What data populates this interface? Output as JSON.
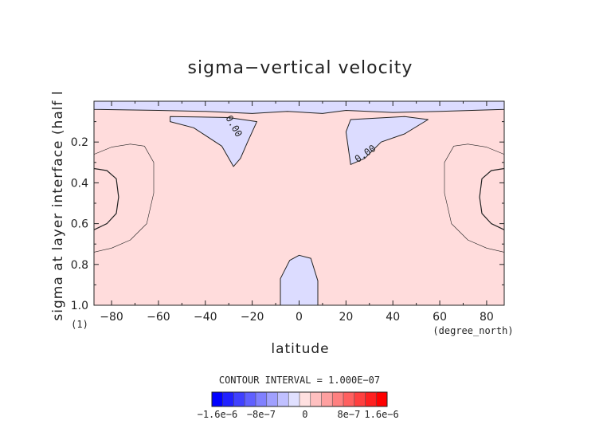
{
  "chart_data": {
    "type": "contour",
    "title": "sigma−vertical velocity",
    "xlabel": "latitude",
    "xunit": "(degree_north)",
    "ylabel": "sigma at layer interface (half l",
    "yunit": "(1)",
    "xlim": [
      -87.5,
      87.5
    ],
    "ylim": [
      1.0,
      0.0
    ],
    "x_ticks": [
      {
        "value": -80,
        "label": "−80"
      },
      {
        "value": -60,
        "label": "−60"
      },
      {
        "value": -40,
        "label": "−40"
      },
      {
        "value": -20,
        "label": "−20"
      },
      {
        "value": 0,
        "label": "0"
      },
      {
        "value": 20,
        "label": "20"
      },
      {
        "value": 40,
        "label": "40"
      },
      {
        "value": 60,
        "label": "60"
      },
      {
        "value": 80,
        "label": "80"
      }
    ],
    "y_ticks": [
      {
        "value": 0.2,
        "label": "0.2"
      },
      {
        "value": 0.4,
        "label": "0.4"
      },
      {
        "value": 0.6,
        "label": "0.6"
      },
      {
        "value": 0.8,
        "label": "0.8"
      },
      {
        "value": 1.0,
        "label": "1.0"
      }
    ],
    "contour_labels": [
      {
        "text": "0.00",
        "lat": -29,
        "sigma": 0.13,
        "angle": 60
      },
      {
        "text": "0.00",
        "lat": 29,
        "sigma": 0.27,
        "angle": -35
      }
    ],
    "negative_regions": [
      {
        "name": "top-band",
        "points": [
          [
            -87.5,
            0.04
          ],
          [
            -60,
            0.045
          ],
          [
            -40,
            0.05
          ],
          [
            -20,
            0.06
          ],
          [
            -5,
            0.05
          ],
          [
            10,
            0.06
          ],
          [
            20,
            0.045
          ],
          [
            40,
            0.055
          ],
          [
            60,
            0.05
          ],
          [
            87.5,
            0.04
          ],
          [
            87.5,
            0
          ],
          [
            -87.5,
            0
          ]
        ]
      },
      {
        "name": "south-upper",
        "points": [
          [
            -55,
            0.075
          ],
          [
            -30,
            0.08
          ],
          [
            -18,
            0.1
          ],
          [
            -22,
            0.2
          ],
          [
            -25,
            0.28
          ],
          [
            -28,
            0.32
          ],
          [
            -33,
            0.22
          ],
          [
            -45,
            0.13
          ],
          [
            -55,
            0.1
          ]
        ]
      },
      {
        "name": "north-upper",
        "points": [
          [
            22,
            0.09
          ],
          [
            45,
            0.075
          ],
          [
            55,
            0.09
          ],
          [
            45,
            0.16
          ],
          [
            35,
            0.2
          ],
          [
            28,
            0.28
          ],
          [
            22,
            0.31
          ],
          [
            20,
            0.15
          ]
        ]
      },
      {
        "name": "equator-lower",
        "points": [
          [
            -8,
            1.0
          ],
          [
            -8,
            0.87
          ],
          [
            -4,
            0.78
          ],
          [
            0,
            0.755
          ],
          [
            5,
            0.77
          ],
          [
            8,
            0.88
          ],
          [
            8,
            1.0
          ]
        ]
      }
    ],
    "colorbar": {
      "title": "CONTOUR INTERVAL = 1.000E−07",
      "tick_labels": [
        "−1.6e−6",
        "−8e−7",
        "0",
        "8e−7",
        "1.6e−6"
      ],
      "colors": [
        "#0000ff",
        "#2020ff",
        "#4040ff",
        "#6060ff",
        "#8080ff",
        "#a0a0ff",
        "#c0c0ff",
        "#e0e0ff",
        "#ffe0e0",
        "#ffc0c0",
        "#ffa0a0",
        "#ff8080",
        "#ff6060",
        "#ff4040",
        "#ff2020",
        "#ff0000"
      ]
    }
  }
}
